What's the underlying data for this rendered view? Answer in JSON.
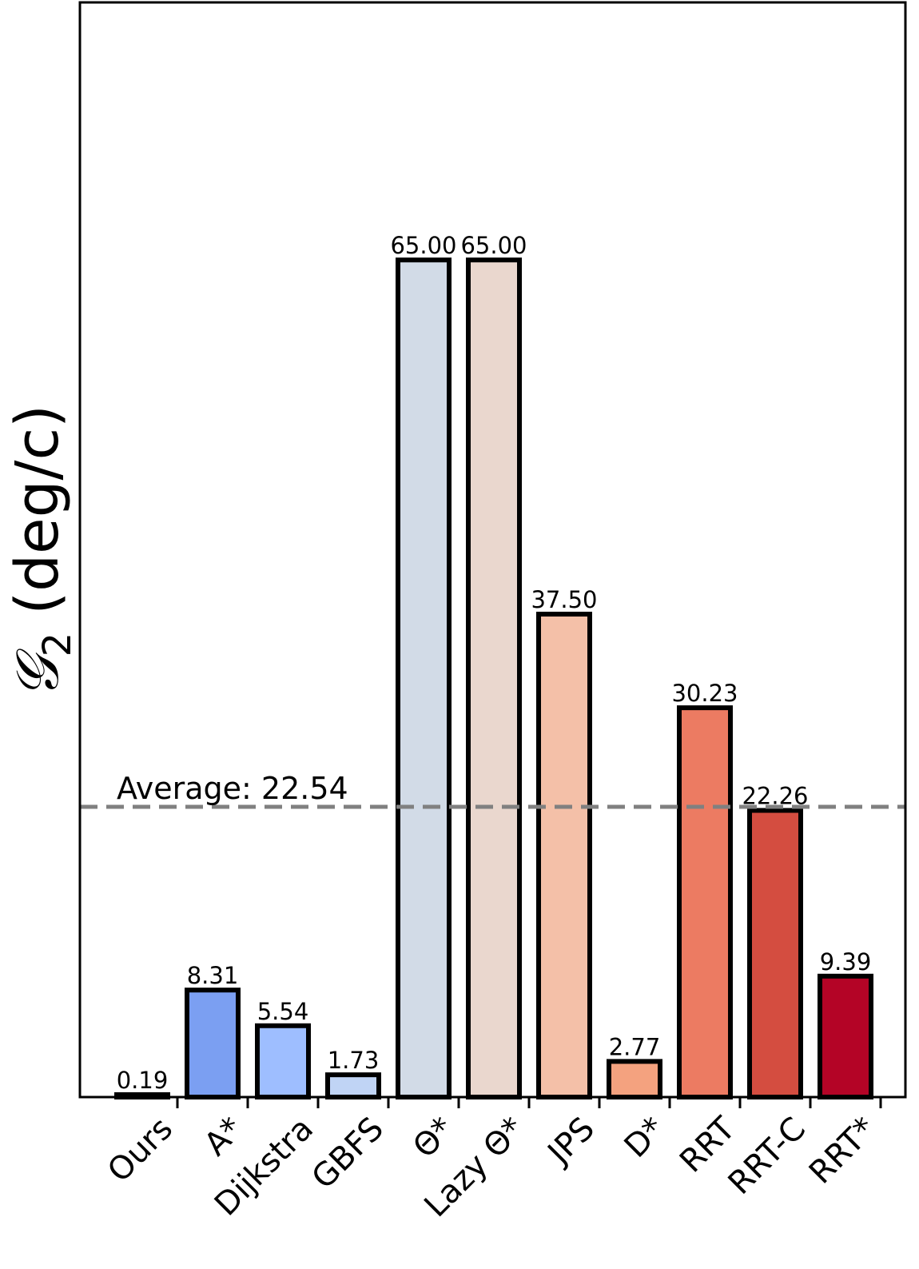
{
  "chart_data": {
    "type": "bar",
    "categories": [
      "Ours",
      "A*",
      "Dijkstra",
      "GBFS",
      "Θ*",
      "Lazy Θ*",
      "JPS",
      "D*",
      "RRT",
      "RRT-C",
      "RRT*"
    ],
    "values": [
      0.19,
      8.31,
      5.54,
      1.73,
      65.0,
      65.0,
      37.5,
      2.77,
      30.23,
      22.26,
      9.39
    ],
    "value_labels": [
      "0.19",
      "8.31",
      "5.54",
      "1.73",
      "65.00",
      "65.00",
      "37.50",
      "2.77",
      "30.23",
      "22.26",
      "9.39"
    ],
    "colors": [
      "#3b4cc0",
      "#7b9ff2",
      "#9ebeff",
      "#c0d4f5",
      "#d2dbe7",
      "#ead7ce",
      "#f4c0a8",
      "#f4a27f",
      "#ec7b62",
      "#d44d40",
      "#b40426"
    ],
    "edge_color": "#000000",
    "ylabel_symbol": "𝒢",
    "ylabel_subscript": "2",
    "ylabel_unit": "(deg/c)",
    "ylim": [
      0,
      85
    ],
    "average": {
      "value": 22.54,
      "label": "Average: 22.54",
      "color": "#808080",
      "style": "dashed"
    },
    "xtick_rotation": -45,
    "yticks_shown": false,
    "grid": false
  }
}
